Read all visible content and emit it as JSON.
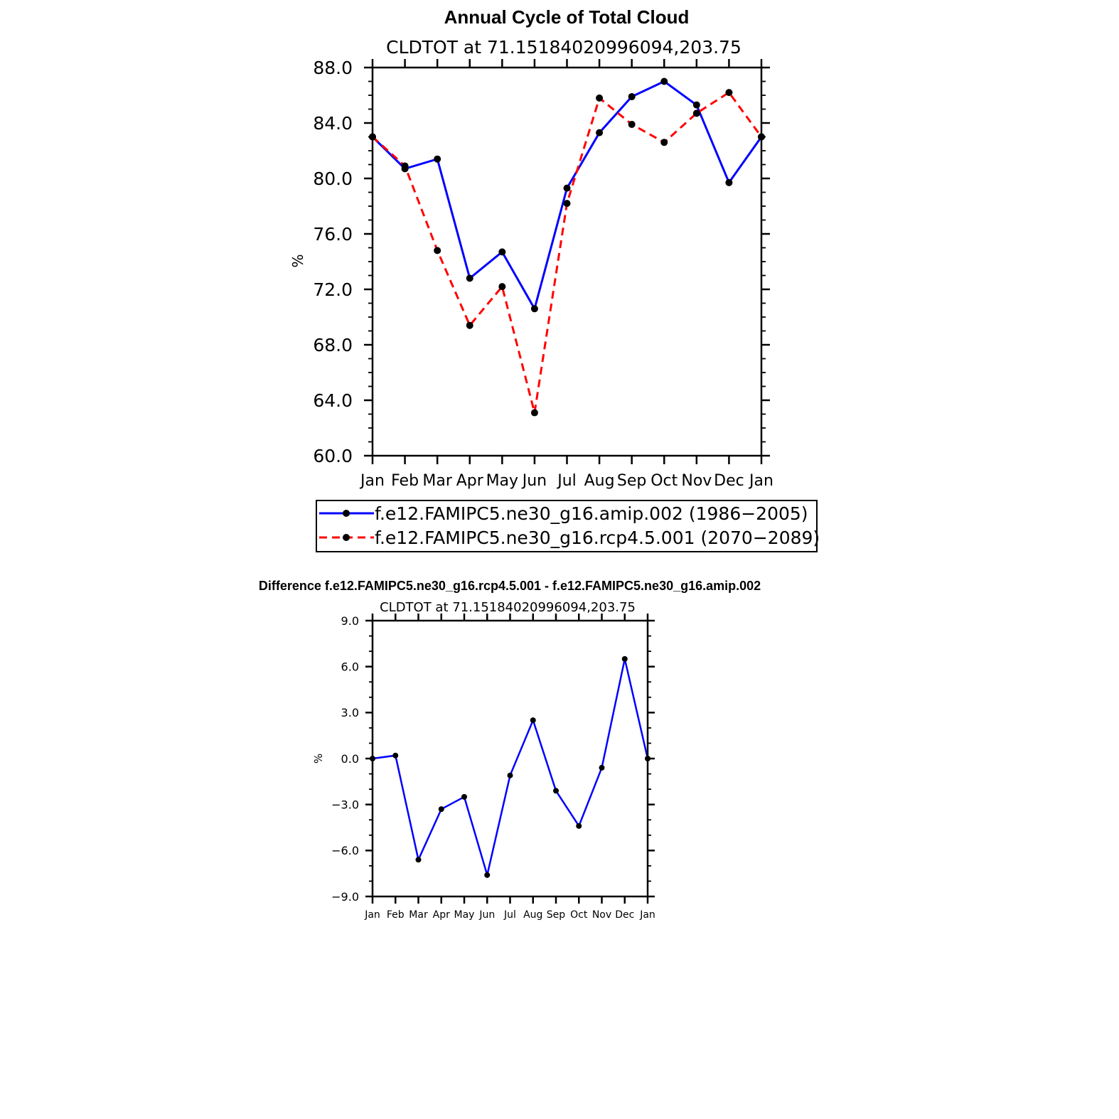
{
  "colors": {
    "series_1": "#0000ff",
    "series_2": "#ff0000",
    "marker": "#000000",
    "axis": "#000000"
  },
  "chart_data": [
    {
      "type": "line",
      "title": "Annual Cycle of Total Cloud",
      "subtitle": "CLDTOT at 71.15184020996094,203.75",
      "xlabel": "",
      "ylabel": "%",
      "categories": [
        "Jan",
        "Feb",
        "Mar",
        "Apr",
        "May",
        "Jun",
        "Jul",
        "Aug",
        "Sep",
        "Oct",
        "Nov",
        "Dec",
        "Jan"
      ],
      "ylim": [
        60,
        88
      ],
      "yticks": [
        "60.0",
        "64.0",
        "68.0",
        "72.0",
        "76.0",
        "80.0",
        "84.0",
        "88.0"
      ],
      "legend_position": "bottom",
      "series": [
        {
          "name": "f.e12.FAMIPC5.ne30_g16.amip.002 (1986−2005)",
          "style": "solid",
          "color": "#0000ff",
          "values": [
            83.0,
            80.7,
            81.4,
            72.8,
            74.7,
            70.6,
            79.3,
            83.3,
            85.9,
            87.0,
            85.3,
            79.7,
            83.0
          ]
        },
        {
          "name": "f.e12.FAMIPC5.ne30_g16.rcp4.5.001 (2070−2089)",
          "style": "dashed",
          "color": "#ff0000",
          "values": [
            83.0,
            80.9,
            74.8,
            69.4,
            72.2,
            63.1,
            78.2,
            85.8,
            83.9,
            82.6,
            84.7,
            86.2,
            83.0
          ]
        }
      ]
    },
    {
      "type": "line",
      "title": "Difference f.e12.FAMIPC5.ne30_g16.rcp4.5.001 - f.e12.FAMIPC5.ne30_g16.amip.002",
      "subtitle": "CLDTOT at 71.15184020996094,203.75",
      "xlabel": "",
      "ylabel": "%",
      "categories": [
        "Jan",
        "Feb",
        "Mar",
        "Apr",
        "May",
        "Jun",
        "Jul",
        "Aug",
        "Sep",
        "Oct",
        "Nov",
        "Dec",
        "Jan"
      ],
      "ylim": [
        -9,
        9
      ],
      "yticks": [
        "−9.0",
        "−6.0",
        "−3.0",
        "0.0",
        "3.0",
        "6.0",
        "9.0"
      ],
      "series": [
        {
          "style": "solid",
          "color": "#0000ff",
          "values": [
            0.0,
            0.2,
            -6.6,
            -3.3,
            -2.5,
            -7.6,
            -1.1,
            2.5,
            -2.1,
            -4.4,
            -0.6,
            6.5,
            0.0
          ]
        }
      ]
    }
  ]
}
